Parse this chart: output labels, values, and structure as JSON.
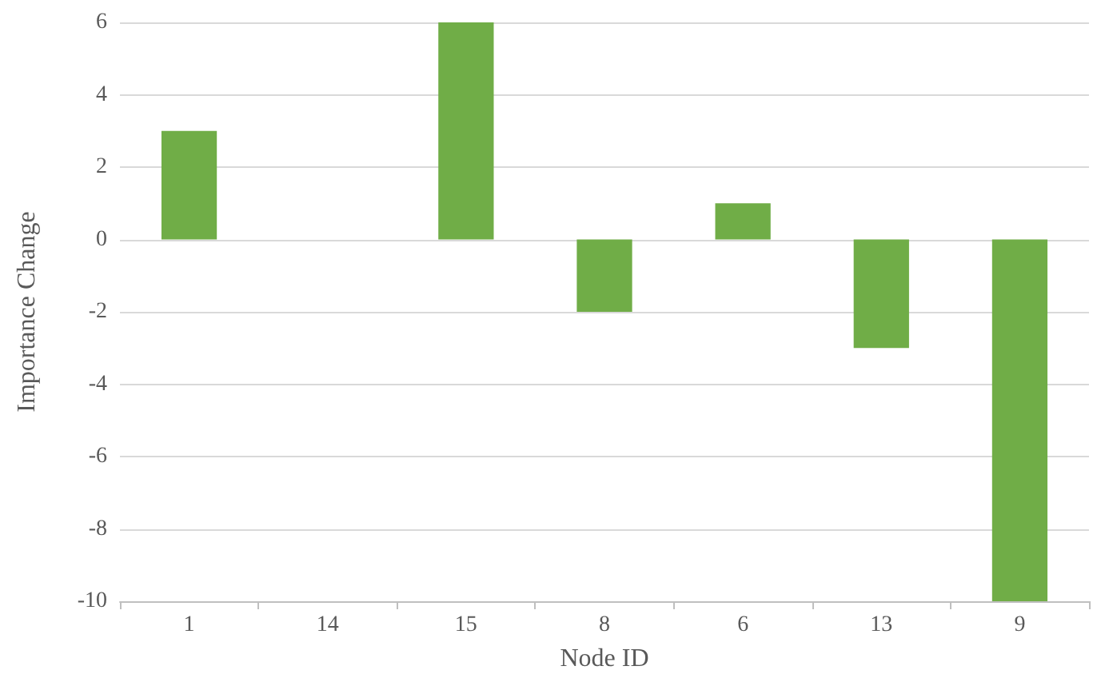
{
  "chart_data": {
    "type": "bar",
    "xlabel": "Node ID",
    "ylabel": "Importance Change",
    "categories": [
      "1",
      "14",
      "15",
      "8",
      "6",
      "13",
      "9"
    ],
    "values": [
      3,
      0,
      6,
      -2,
      1,
      -3,
      -10
    ],
    "color": "#70ad47",
    "ylim": [
      -10,
      6
    ],
    "yticks": [
      -10,
      -8,
      -6,
      -4,
      -2,
      0,
      2,
      4,
      6
    ],
    "grid": "y"
  }
}
